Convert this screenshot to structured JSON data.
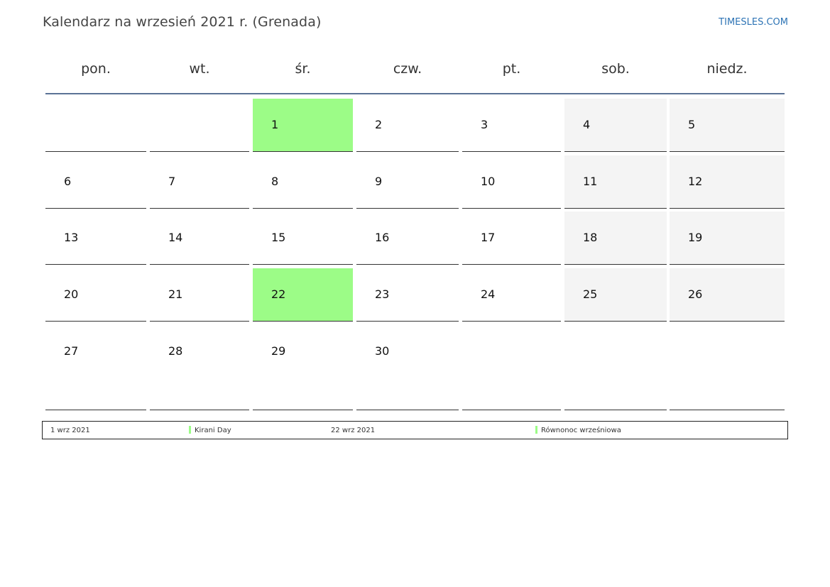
{
  "header": {
    "title": "Kalendarz na wrzesień 2021 r. (Grenada)",
    "brand": "TIMESLES.COM"
  },
  "colors": {
    "holiday": "#9cfc87",
    "weekend": "#f4f4f4",
    "header_rule": "#5b7396",
    "brand": "#2e74b5"
  },
  "weekdays": [
    "pon.",
    "wt.",
    "śr.",
    "czw.",
    "pt.",
    "sob.",
    "niedz."
  ],
  "weeks": [
    [
      "",
      "",
      "1",
      "2",
      "3",
      "4",
      "5"
    ],
    [
      "6",
      "7",
      "8",
      "9",
      "10",
      "11",
      "12"
    ],
    [
      "13",
      "14",
      "15",
      "16",
      "17",
      "18",
      "19"
    ],
    [
      "20",
      "21",
      "22",
      "23",
      "24",
      "25",
      "26"
    ],
    [
      "27",
      "28",
      "29",
      "30",
      "",
      "",
      ""
    ]
  ],
  "highlighted_days": [
    "1",
    "22"
  ],
  "legend": [
    {
      "date": "1 wrz 2021",
      "name": "Kirani Day"
    },
    {
      "date": "22 wrz 2021",
      "name": "Równonoc wrześniowa"
    }
  ]
}
